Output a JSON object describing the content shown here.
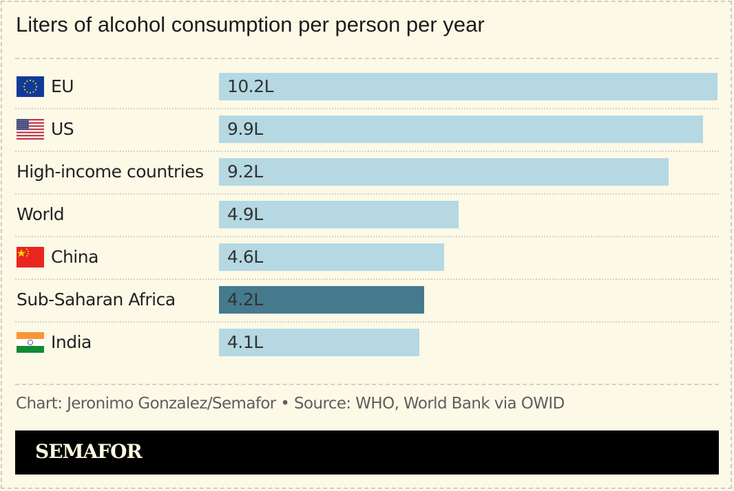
{
  "chart_data": {
    "type": "bar",
    "orientation": "horizontal",
    "title": "Liters of alcohol consumption per person per year",
    "categories": [
      "EU",
      "US",
      "High-income countries",
      "World",
      "China",
      "Sub-Saharan Africa",
      "India"
    ],
    "values": [
      10.2,
      9.9,
      9.2,
      4.9,
      4.6,
      4.2,
      4.1
    ],
    "value_labels": [
      "10.2L",
      "9.9L",
      "9.2L",
      "4.9L",
      "4.6L",
      "4.2L",
      "4.1L"
    ],
    "flags": [
      "eu-flag-icon",
      "us-flag-icon",
      null,
      null,
      "china-flag-icon",
      null,
      "india-flag-icon"
    ],
    "highlight": "Sub-Saharan Africa",
    "colors": {
      "bar": "#b5d8e3",
      "highlight": "#457a8e",
      "background": "#fcf9e7"
    },
    "grid": false,
    "xlim": [
      0,
      10.2
    ]
  },
  "footer": {
    "source": "Chart: Jeronimo Gonzalez/Semafor • Source: WHO, World Bank via OWID",
    "brand": "SEMAFOR"
  }
}
